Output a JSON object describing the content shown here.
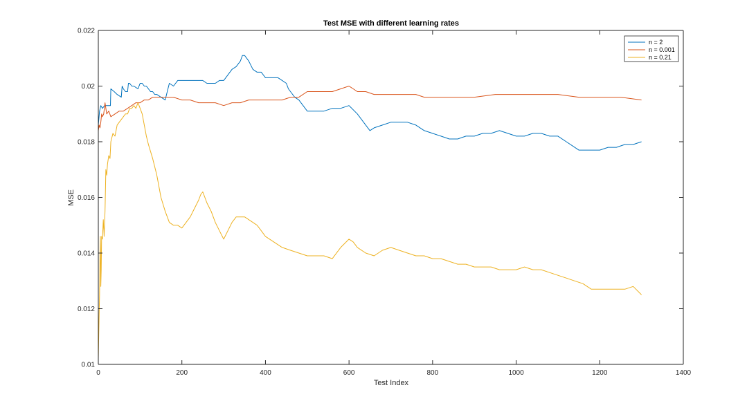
{
  "chart_data": {
    "type": "line",
    "title": "Test MSE with different learning rates",
    "xlabel": "Test Index",
    "ylabel": "MSE",
    "xlim": [
      0,
      1400
    ],
    "ylim": [
      0.01,
      0.022
    ],
    "xticks": [
      0,
      200,
      400,
      600,
      800,
      1000,
      1200,
      1400
    ],
    "xtick_labels": [
      "0",
      "200",
      "400",
      "600",
      "800",
      "1000",
      "1200",
      "1400"
    ],
    "yticks": [
      0.01,
      0.012,
      0.014,
      0.016,
      0.018,
      0.02,
      0.022
    ],
    "ytick_labels": [
      "0.01",
      "0.012",
      "0.014",
      "0.016",
      "0.018",
      "0.02",
      "0.022"
    ],
    "grid": false,
    "legend_position": "top-right",
    "series": [
      {
        "name": "n = 2",
        "color": "#0072BD",
        "x": [
          0,
          3,
          6,
          10,
          15,
          20,
          25,
          29,
          30,
          38,
          45,
          55,
          57,
          60,
          65,
          70,
          72,
          75,
          80,
          85,
          95,
          100,
          105,
          110,
          115,
          120,
          125,
          130,
          135,
          140,
          150,
          160,
          165,
          170,
          180,
          190,
          200,
          210,
          220,
          230,
          240,
          250,
          260,
          270,
          280,
          290,
          300,
          310,
          320,
          330,
          340,
          345,
          350,
          355,
          360,
          370,
          380,
          390,
          400,
          410,
          420,
          430,
          440,
          450,
          455,
          460,
          470,
          480,
          490,
          500,
          520,
          540,
          560,
          580,
          600,
          620,
          640,
          650,
          660,
          680,
          700,
          720,
          740,
          760,
          780,
          800,
          820,
          840,
          850,
          860,
          880,
          900,
          920,
          940,
          960,
          980,
          1000,
          1020,
          1040,
          1060,
          1080,
          1100,
          1120,
          1140,
          1150,
          1160,
          1180,
          1200,
          1220,
          1240,
          1260,
          1280,
          1300
        ],
        "values": [
          0.0186,
          0.0191,
          0.0193,
          0.0192,
          0.0193,
          0.0193,
          0.0193,
          0.0193,
          0.0199,
          0.0198,
          0.0197,
          0.0196,
          0.02,
          0.0199,
          0.0198,
          0.0198,
          0.0201,
          0.0201,
          0.02,
          0.02,
          0.0199,
          0.0201,
          0.0201,
          0.02,
          0.02,
          0.0199,
          0.0198,
          0.0198,
          0.0197,
          0.0197,
          0.0196,
          0.0195,
          0.0198,
          0.0201,
          0.02,
          0.0202,
          0.0202,
          0.0202,
          0.0202,
          0.0202,
          0.0202,
          0.0202,
          0.0201,
          0.0201,
          0.0201,
          0.0202,
          0.0202,
          0.0204,
          0.0206,
          0.0207,
          0.0209,
          0.0211,
          0.0211,
          0.021,
          0.0209,
          0.0206,
          0.0205,
          0.0205,
          0.0203,
          0.0203,
          0.0203,
          0.0203,
          0.0202,
          0.0201,
          0.0199,
          0.0198,
          0.0196,
          0.0195,
          0.0193,
          0.0191,
          0.0191,
          0.0191,
          0.0192,
          0.0192,
          0.0193,
          0.019,
          0.0186,
          0.0184,
          0.0185,
          0.0186,
          0.0187,
          0.0187,
          0.0187,
          0.0186,
          0.0184,
          0.0183,
          0.0182,
          0.0181,
          0.0181,
          0.0181,
          0.0182,
          0.0182,
          0.0183,
          0.0183,
          0.0184,
          0.0183,
          0.0182,
          0.0182,
          0.0183,
          0.0183,
          0.0182,
          0.0182,
          0.018,
          0.0178,
          0.0177,
          0.0177,
          0.0177,
          0.0177,
          0.0178,
          0.0178,
          0.0179,
          0.0179,
          0.018
        ]
      },
      {
        "name": "n = 0.001",
        "color": "#D95319",
        "x": [
          0,
          2,
          4,
          6,
          8,
          10,
          13,
          16,
          20,
          25,
          30,
          40,
          50,
          60,
          70,
          80,
          90,
          100,
          110,
          120,
          130,
          140,
          160,
          180,
          200,
          220,
          240,
          260,
          280,
          300,
          320,
          340,
          360,
          380,
          400,
          420,
          440,
          460,
          480,
          500,
          520,
          540,
          560,
          580,
          600,
          610,
          620,
          640,
          660,
          680,
          700,
          720,
          740,
          760,
          780,
          800,
          850,
          900,
          950,
          1000,
          1050,
          1100,
          1150,
          1200,
          1250,
          1300
        ],
        "values": [
          0.0184,
          0.0186,
          0.0185,
          0.0187,
          0.019,
          0.0189,
          0.019,
          0.0194,
          0.019,
          0.0191,
          0.0189,
          0.019,
          0.0191,
          0.0191,
          0.0192,
          0.0193,
          0.0194,
          0.0194,
          0.0195,
          0.0195,
          0.0196,
          0.0196,
          0.0196,
          0.0196,
          0.0195,
          0.0195,
          0.0194,
          0.0194,
          0.0194,
          0.0193,
          0.0194,
          0.0194,
          0.0195,
          0.0195,
          0.0195,
          0.0195,
          0.0195,
          0.0196,
          0.0196,
          0.0198,
          0.0198,
          0.0198,
          0.0198,
          0.0199,
          0.02,
          0.0199,
          0.0198,
          0.0198,
          0.0197,
          0.0197,
          0.0197,
          0.0197,
          0.0197,
          0.0197,
          0.0196,
          0.0196,
          0.0196,
          0.0196,
          0.0197,
          0.0197,
          0.0197,
          0.0197,
          0.0196,
          0.0196,
          0.0196,
          0.0195
        ]
      },
      {
        "name": "n = 0.21",
        "color": "#EDB120",
        "x": [
          0,
          1,
          2,
          3,
          4,
          5,
          6,
          7,
          8,
          10,
          12,
          14,
          16,
          18,
          20,
          22,
          25,
          28,
          30,
          35,
          40,
          45,
          50,
          55,
          60,
          65,
          70,
          75,
          80,
          85,
          90,
          95,
          100,
          105,
          110,
          115,
          120,
          130,
          140,
          150,
          160,
          170,
          180,
          190,
          200,
          210,
          220,
          230,
          240,
          245,
          250,
          255,
          260,
          270,
          280,
          290,
          300,
          310,
          320,
          330,
          340,
          350,
          360,
          370,
          380,
          390,
          400,
          420,
          440,
          460,
          480,
          500,
          520,
          540,
          560,
          580,
          600,
          610,
          620,
          640,
          660,
          680,
          700,
          720,
          740,
          760,
          780,
          800,
          820,
          840,
          860,
          880,
          900,
          920,
          940,
          960,
          980,
          1000,
          1020,
          1040,
          1060,
          1080,
          1100,
          1120,
          1140,
          1160,
          1180,
          1200,
          1220,
          1240,
          1260,
          1280,
          1300
        ],
        "values": [
          0.0102,
          0.011,
          0.0118,
          0.0125,
          0.014,
          0.0146,
          0.0128,
          0.0134,
          0.0146,
          0.0145,
          0.0152,
          0.0146,
          0.0155,
          0.017,
          0.0168,
          0.0172,
          0.0175,
          0.0174,
          0.018,
          0.0183,
          0.0182,
          0.0186,
          0.0187,
          0.0188,
          0.0189,
          0.019,
          0.019,
          0.0192,
          0.0192,
          0.0193,
          0.0192,
          0.0194,
          0.0192,
          0.019,
          0.0186,
          0.0182,
          0.0179,
          0.0174,
          0.0168,
          0.016,
          0.0155,
          0.0151,
          0.015,
          0.015,
          0.0149,
          0.0151,
          0.0153,
          0.0156,
          0.0159,
          0.0161,
          0.0162,
          0.016,
          0.0158,
          0.0155,
          0.0151,
          0.0148,
          0.0145,
          0.0148,
          0.0151,
          0.0153,
          0.0153,
          0.0153,
          0.0152,
          0.0151,
          0.015,
          0.0148,
          0.0146,
          0.0144,
          0.0142,
          0.0141,
          0.014,
          0.0139,
          0.0139,
          0.0139,
          0.0138,
          0.0142,
          0.0145,
          0.0144,
          0.0142,
          0.014,
          0.0139,
          0.0141,
          0.0142,
          0.0141,
          0.014,
          0.0139,
          0.0139,
          0.0138,
          0.0138,
          0.0137,
          0.0136,
          0.0136,
          0.0135,
          0.0135,
          0.0135,
          0.0134,
          0.0134,
          0.0134,
          0.0135,
          0.0134,
          0.0134,
          0.0133,
          0.0132,
          0.0131,
          0.013,
          0.0129,
          0.0127,
          0.0127,
          0.0127,
          0.0127,
          0.0127,
          0.0128,
          0.0125
        ]
      }
    ]
  }
}
